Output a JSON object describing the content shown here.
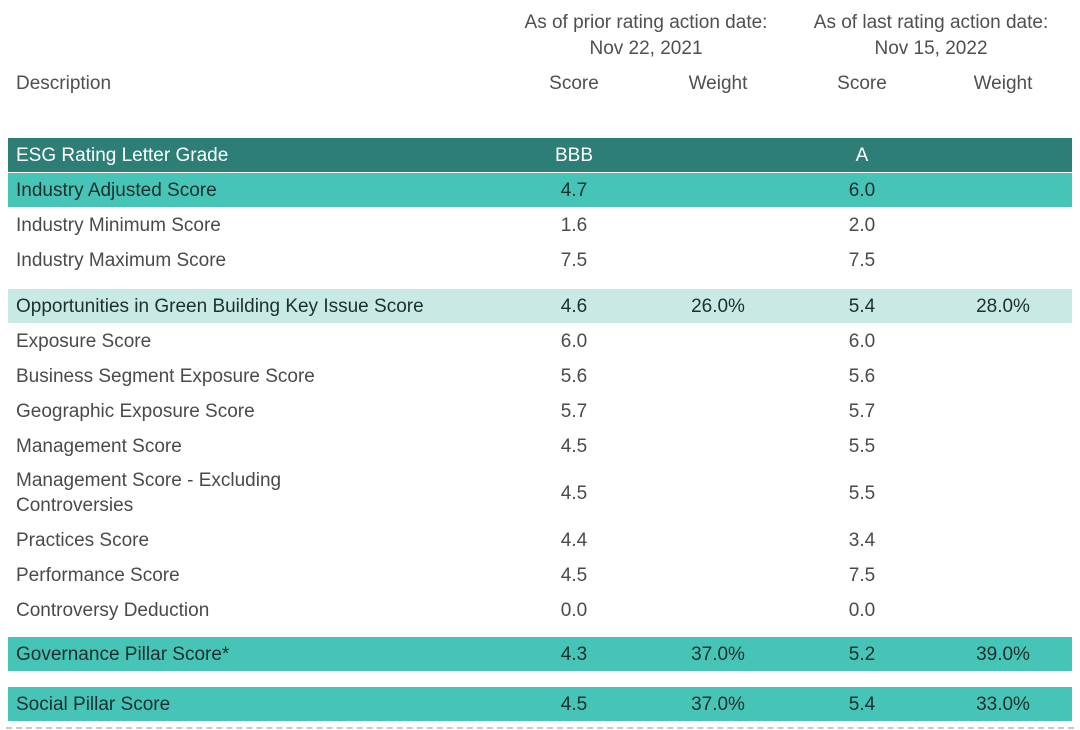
{
  "colors": {
    "page_bg": "#FFFFFF",
    "dark_teal": "#2C7E77",
    "medium_teal": "#47C4B8",
    "light_teal": "#C9EAE4"
  },
  "header": {
    "description_label": "Description",
    "groups": [
      {
        "title": "As of prior rating action date:",
        "date": "Nov 22, 2021"
      },
      {
        "title": "As of last rating action date:",
        "date": "Nov 15, 2022"
      }
    ],
    "columns": [
      "Score",
      "Weight",
      "Score",
      "Weight"
    ]
  },
  "table": {
    "rows": [
      {
        "label": "ESG Rating Letter Grade",
        "score_prior": "BBB",
        "weight_prior": "",
        "score_last": "A",
        "weight_last": ""
      },
      {
        "label": "Industry Adjusted Score",
        "score_prior": "4.7",
        "weight_prior": "",
        "score_last": "6.0",
        "weight_last": ""
      },
      {
        "label": "Industry Minimum Score",
        "score_prior": "1.6",
        "weight_prior": "",
        "score_last": "2.0",
        "weight_last": ""
      },
      {
        "label": "Industry Maximum Score",
        "score_prior": "7.5",
        "weight_prior": "",
        "score_last": "7.5",
        "weight_last": ""
      },
      {
        "label": "Opportunities in Green Building Key Issue Score",
        "score_prior": "4.6",
        "weight_prior": "26.0%",
        "score_last": "5.4",
        "weight_last": "28.0%"
      },
      {
        "label": "Exposure Score",
        "score_prior": "6.0",
        "weight_prior": "",
        "score_last": "6.0",
        "weight_last": ""
      },
      {
        "label": "Business Segment Exposure Score",
        "score_prior": "5.6",
        "weight_prior": "",
        "score_last": "5.6",
        "weight_last": ""
      },
      {
        "label": "Geographic Exposure Score",
        "score_prior": "5.7",
        "weight_prior": "",
        "score_last": "5.7",
        "weight_last": ""
      },
      {
        "label": "Management Score",
        "score_prior": "4.5",
        "weight_prior": "",
        "score_last": "5.5",
        "weight_last": ""
      },
      {
        "label": "Management Score - Excluding\nControversies",
        "score_prior": "4.5",
        "weight_prior": "",
        "score_last": "5.5",
        "weight_last": ""
      },
      {
        "label": "Practices Score",
        "score_prior": "4.4",
        "weight_prior": "",
        "score_last": "3.4",
        "weight_last": ""
      },
      {
        "label": "Performance Score",
        "score_prior": "4.5",
        "weight_prior": "",
        "score_last": "7.5",
        "weight_last": ""
      },
      {
        "label": "Controversy Deduction",
        "score_prior": "0.0",
        "weight_prior": "",
        "score_last": "0.0",
        "weight_last": ""
      },
      {
        "label": "Governance Pillar Score*",
        "score_prior": "4.3",
        "weight_prior": "37.0%",
        "score_last": "5.2",
        "weight_last": "39.0%"
      },
      {
        "label": "Social Pillar Score",
        "score_prior": "4.5",
        "weight_prior": "37.0%",
        "score_last": "5.4",
        "weight_last": "33.0%"
      }
    ]
  }
}
